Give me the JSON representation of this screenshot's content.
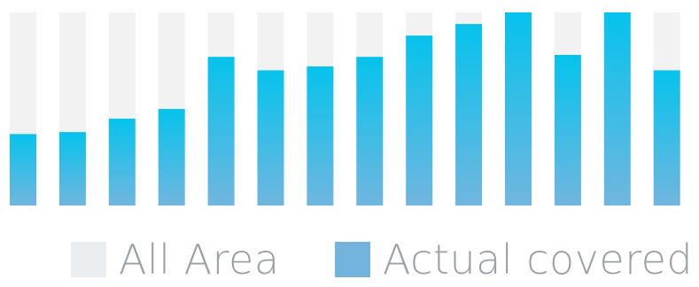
{
  "chart_data": {
    "type": "bar",
    "categories": [
      "",
      "",
      "",
      "",
      "",
      "",
      "",
      "",
      "",
      "",
      "",
      "",
      "",
      ""
    ],
    "series": [
      {
        "name": "All Area",
        "values": [
          100,
          100,
          100,
          100,
          100,
          100,
          100,
          100,
          100,
          100,
          100,
          100,
          100,
          100
        ],
        "color": "#f2f2f3"
      },
      {
        "name": "Actual covered",
        "values": [
          37,
          38,
          45,
          50,
          77,
          70,
          72,
          77,
          88,
          94,
          100,
          78,
          100,
          70
        ],
        "color_top": "#05c3ec",
        "color_bottom": "#70b6df"
      }
    ],
    "ylim": [
      0,
      100
    ],
    "grid": false,
    "legend": "bottom"
  },
  "legend": {
    "items": [
      {
        "label": "All Area",
        "color": "#ebeef0"
      },
      {
        "label": "Actual covered",
        "color": "#73b4de"
      }
    ]
  }
}
